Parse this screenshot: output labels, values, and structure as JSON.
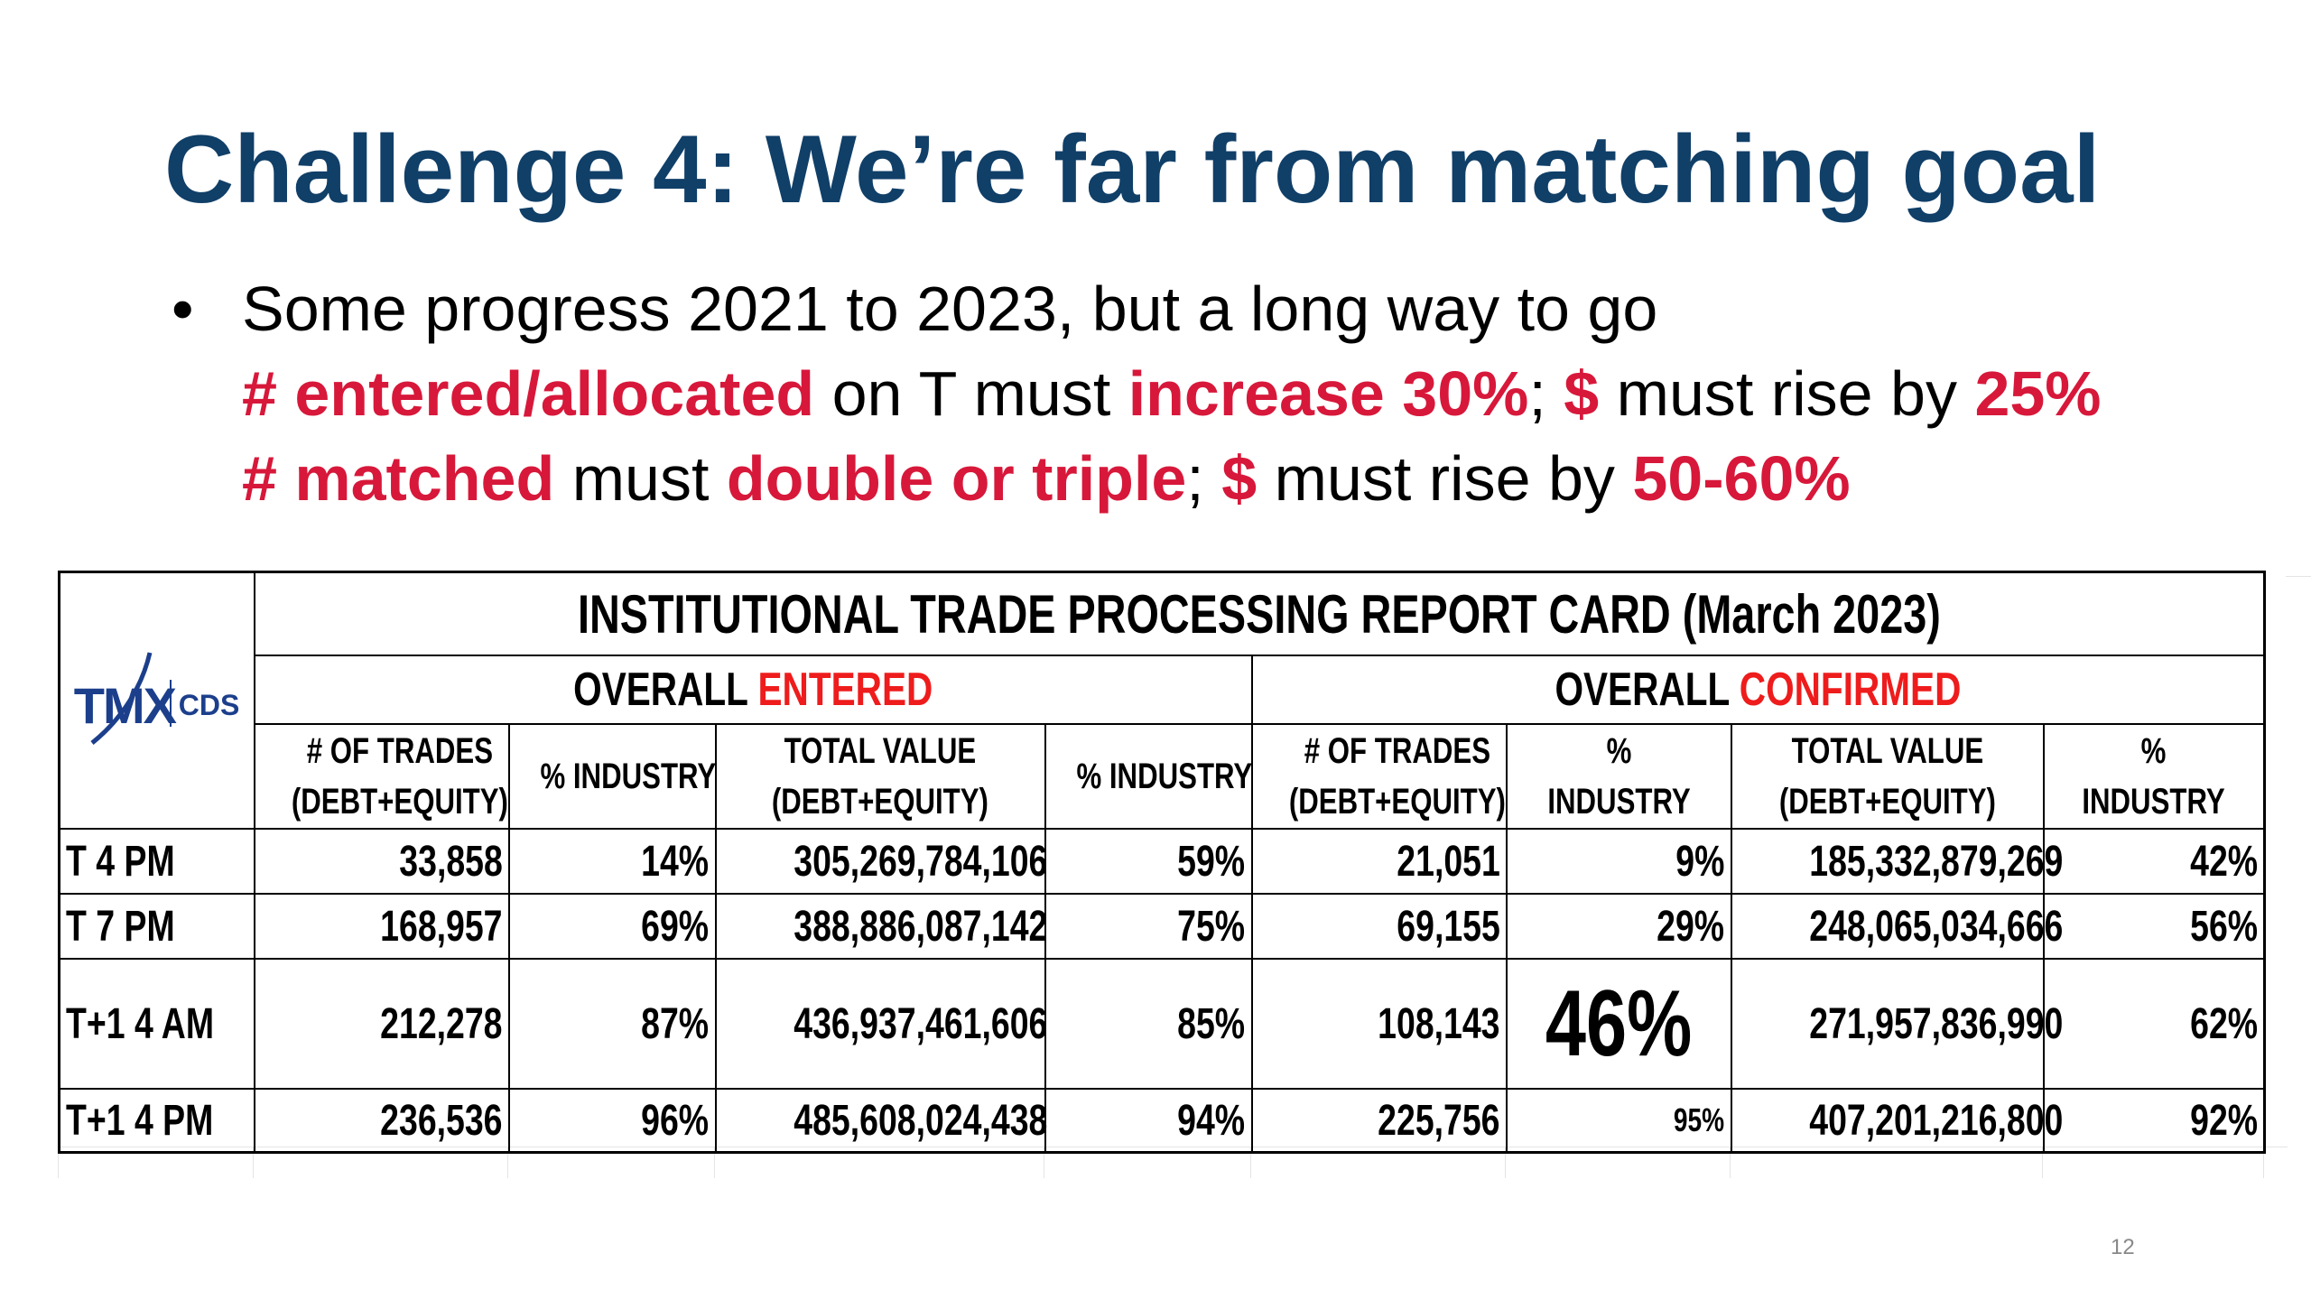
{
  "slide": {
    "title": "Challenge 4: We’re far from matching goal",
    "page_number": "12"
  },
  "bullets": {
    "marker": "•",
    "line1": "Some progress 2021 to 2023, but a long way to go",
    "line2": {
      "p1": "# entered/allocated",
      "p2": " on T must ",
      "p3": "increase 30%",
      "p4": "; ",
      "p5": "$",
      "p6": " must rise by ",
      "p7": "25%"
    },
    "line3": {
      "p1": "# matched",
      "p2": " must ",
      "p3": "double or triple",
      "p4": "; ",
      "p5": "$",
      "p6": " must rise by ",
      "p7": "50-60%"
    }
  },
  "logo": {
    "tmx": "TMX",
    "cds": "CDS"
  },
  "table": {
    "title": "INSTITUTIONAL TRADE PROCESSING REPORT CARD (March 2023)",
    "groups": [
      {
        "prefix": "OVERALL ",
        "accent": "ENTERED"
      },
      {
        "prefix": "OVERALL ",
        "accent": "CONFIRMED"
      }
    ],
    "headers": [
      {
        "line1": "# OF TRADES",
        "line2": "(DEBT+EQUITY)"
      },
      {
        "line1": "% INDUSTRY",
        "line2": ""
      },
      {
        "line1": "TOTAL VALUE",
        "line2": "(DEBT+EQUITY)"
      },
      {
        "line1": "% INDUSTRY",
        "line2": ""
      },
      {
        "line1": "# OF TRADES",
        "line2": "(DEBT+EQUITY)"
      },
      {
        "line1": "%",
        "line2": "INDUSTRY"
      },
      {
        "line1": "TOTAL VALUE",
        "line2": "(DEBT+EQUITY)"
      },
      {
        "line1": "%",
        "line2": "INDUSTRY"
      }
    ],
    "rows": [
      {
        "label": "T 4 PM",
        "cells": [
          "33,858",
          "14%",
          "305,269,784,106",
          "59%",
          "21,051",
          "9%",
          "185,332,879,269",
          "42%"
        ]
      },
      {
        "label": "T 7 PM",
        "cells": [
          "168,957",
          "69%",
          "388,886,087,142",
          "75%",
          "69,155",
          "29%",
          "248,065,034,666",
          "56%"
        ]
      },
      {
        "label": "T+1 4 AM",
        "cells": [
          "212,278",
          "87%",
          "436,937,461,606",
          "85%",
          "108,143",
          "46%",
          "271,957,836,990",
          "62%"
        ]
      },
      {
        "label": "T+1 4 PM",
        "cells": [
          "236,536",
          "96%",
          "485,608,024,438",
          "94%",
          "225,756",
          "95%",
          "407,201,216,800",
          "92%"
        ]
      }
    ],
    "emphasis_color": "#ee1c1c"
  },
  "colors": {
    "title": "#103f68",
    "highlight": "#d7183a",
    "logo": "#1c3f8c"
  }
}
